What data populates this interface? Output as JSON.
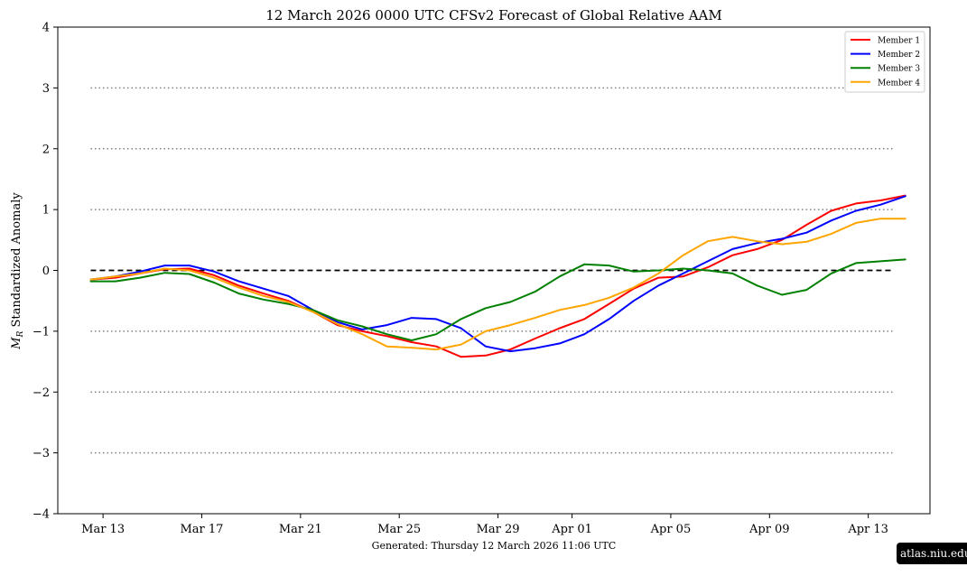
{
  "chart_data": {
    "type": "line",
    "title": "12  March  2026 0000 UTC   CFSv2 Forecast of Global Relative AAM",
    "ylabel_prefix": "M",
    "ylabel_subscript": "R",
    "ylabel_text": " Standardized Anomaly",
    "ylim": [
      -4,
      4
    ],
    "yticks": [
      {
        "value": 4,
        "label": "4"
      },
      {
        "value": 3,
        "label": "3"
      },
      {
        "value": 2,
        "label": "2"
      },
      {
        "value": 1,
        "label": "1"
      },
      {
        "value": 0,
        "label": "0"
      },
      {
        "value": -1,
        "label": "−1"
      },
      {
        "value": -2,
        "label": "−2"
      },
      {
        "value": -3,
        "label": "−3"
      },
      {
        "value": -4,
        "label": "−4"
      }
    ],
    "xlim": [
      "2026-03-11T04:00",
      "2026-04-15T12:00"
    ],
    "xticks": [
      {
        "value": "2026-03-13",
        "label": "Mar 13"
      },
      {
        "value": "2026-03-17",
        "label": "Mar 17"
      },
      {
        "value": "2026-03-21",
        "label": "Mar 21"
      },
      {
        "value": "2026-03-25",
        "label": "Mar 25"
      },
      {
        "value": "2026-03-29",
        "label": "Mar 29"
      },
      {
        "value": "2026-04-01",
        "label": "Apr 01"
      },
      {
        "value": "2026-04-05",
        "label": "Apr 05"
      },
      {
        "value": "2026-04-09",
        "label": "Apr 09"
      },
      {
        "value": "2026-04-13",
        "label": "Apr 13"
      }
    ],
    "reference_lines": [
      {
        "y": 3,
        "style": "dotted",
        "color": "#808080"
      },
      {
        "y": 2,
        "style": "dotted",
        "color": "#808080"
      },
      {
        "y": 1,
        "style": "dotted",
        "color": "#808080"
      },
      {
        "y": 0,
        "style": "dashed",
        "color": "#000000"
      },
      {
        "y": -1,
        "style": "dotted",
        "color": "#808080"
      },
      {
        "y": -2,
        "style": "dotted",
        "color": "#808080"
      },
      {
        "y": -3,
        "style": "dotted",
        "color": "#808080"
      }
    ],
    "reference_x_range": [
      "2026-03-12T12:00",
      "2026-04-14T00:00"
    ],
    "legend_position": "top-right",
    "series": [
      {
        "name": "Member 1",
        "color": "#ff0000",
        "points": [
          [
            "2026-03-12T12:00",
            -0.15
          ],
          [
            "2026-03-13T12:00",
            -0.12
          ],
          [
            "2026-03-14T12:00",
            -0.05
          ],
          [
            "2026-03-15T12:00",
            0.02
          ],
          [
            "2026-03-16T12:00",
            0.03
          ],
          [
            "2026-03-17T12:00",
            -0.08
          ],
          [
            "2026-03-18T12:00",
            -0.25
          ],
          [
            "2026-03-19T12:00",
            -0.38
          ],
          [
            "2026-03-20T12:00",
            -0.5
          ],
          [
            "2026-03-21T12:00",
            -0.68
          ],
          [
            "2026-03-22T12:00",
            -0.9
          ],
          [
            "2026-03-23T12:00",
            -1.0
          ],
          [
            "2026-03-24T12:00",
            -1.08
          ],
          [
            "2026-03-25T12:00",
            -1.18
          ],
          [
            "2026-03-26T12:00",
            -1.25
          ],
          [
            "2026-03-27T12:00",
            -1.42
          ],
          [
            "2026-03-28T12:00",
            -1.4
          ],
          [
            "2026-03-29T12:00",
            -1.3
          ],
          [
            "2026-03-30T12:00",
            -1.12
          ],
          [
            "2026-03-31T12:00",
            -0.95
          ],
          [
            "2026-04-01T12:00",
            -0.8
          ],
          [
            "2026-04-02T12:00",
            -0.55
          ],
          [
            "2026-04-03T12:00",
            -0.3
          ],
          [
            "2026-04-04T12:00",
            -0.12
          ],
          [
            "2026-04-05T12:00",
            -0.1
          ],
          [
            "2026-04-06T12:00",
            0.05
          ],
          [
            "2026-04-07T12:00",
            0.25
          ],
          [
            "2026-04-08T12:00",
            0.35
          ],
          [
            "2026-04-09T12:00",
            0.5
          ],
          [
            "2026-04-10T12:00",
            0.75
          ],
          [
            "2026-04-11T12:00",
            0.98
          ],
          [
            "2026-04-12T12:00",
            1.1
          ],
          [
            "2026-04-13T12:00",
            1.15
          ],
          [
            "2026-04-14T12:00",
            1.23
          ]
        ]
      },
      {
        "name": "Member 2",
        "color": "#0000ff",
        "points": [
          [
            "2026-03-12T12:00",
            -0.15
          ],
          [
            "2026-03-13T12:00",
            -0.1
          ],
          [
            "2026-03-14T12:00",
            -0.02
          ],
          [
            "2026-03-15T12:00",
            0.08
          ],
          [
            "2026-03-16T12:00",
            0.08
          ],
          [
            "2026-03-17T12:00",
            -0.02
          ],
          [
            "2026-03-18T12:00",
            -0.18
          ],
          [
            "2026-03-19T12:00",
            -0.3
          ],
          [
            "2026-03-20T12:00",
            -0.42
          ],
          [
            "2026-03-21T12:00",
            -0.65
          ],
          [
            "2026-03-22T12:00",
            -0.85
          ],
          [
            "2026-03-23T12:00",
            -0.97
          ],
          [
            "2026-03-24T12:00",
            -0.9
          ],
          [
            "2026-03-25T12:00",
            -0.78
          ],
          [
            "2026-03-26T12:00",
            -0.8
          ],
          [
            "2026-03-27T12:00",
            -0.95
          ],
          [
            "2026-03-28T12:00",
            -1.25
          ],
          [
            "2026-03-29T12:00",
            -1.33
          ],
          [
            "2026-03-30T12:00",
            -1.28
          ],
          [
            "2026-03-31T12:00",
            -1.2
          ],
          [
            "2026-04-01T12:00",
            -1.05
          ],
          [
            "2026-04-02T12:00",
            -0.8
          ],
          [
            "2026-04-03T12:00",
            -0.5
          ],
          [
            "2026-04-04T12:00",
            -0.25
          ],
          [
            "2026-04-05T12:00",
            -0.05
          ],
          [
            "2026-04-06T12:00",
            0.15
          ],
          [
            "2026-04-07T12:00",
            0.35
          ],
          [
            "2026-04-08T12:00",
            0.45
          ],
          [
            "2026-04-09T12:00",
            0.52
          ],
          [
            "2026-04-10T12:00",
            0.62
          ],
          [
            "2026-04-11T12:00",
            0.82
          ],
          [
            "2026-04-12T12:00",
            0.98
          ],
          [
            "2026-04-13T12:00",
            1.08
          ],
          [
            "2026-04-14T12:00",
            1.22
          ]
        ]
      },
      {
        "name": "Member 3",
        "color": "#008000",
        "points": [
          [
            "2026-03-12T12:00",
            -0.18
          ],
          [
            "2026-03-13T12:00",
            -0.18
          ],
          [
            "2026-03-14T12:00",
            -0.12
          ],
          [
            "2026-03-15T12:00",
            -0.04
          ],
          [
            "2026-03-16T12:00",
            -0.06
          ],
          [
            "2026-03-17T12:00",
            -0.2
          ],
          [
            "2026-03-18T12:00",
            -0.38
          ],
          [
            "2026-03-19T12:00",
            -0.48
          ],
          [
            "2026-03-20T12:00",
            -0.55
          ],
          [
            "2026-03-21T12:00",
            -0.65
          ],
          [
            "2026-03-22T12:00",
            -0.82
          ],
          [
            "2026-03-23T12:00",
            -0.92
          ],
          [
            "2026-03-24T12:00",
            -1.05
          ],
          [
            "2026-03-25T12:00",
            -1.15
          ],
          [
            "2026-03-26T12:00",
            -1.05
          ],
          [
            "2026-03-27T12:00",
            -0.8
          ],
          [
            "2026-03-28T12:00",
            -0.62
          ],
          [
            "2026-03-29T12:00",
            -0.52
          ],
          [
            "2026-03-30T12:00",
            -0.35
          ],
          [
            "2026-03-31T12:00",
            -0.1
          ],
          [
            "2026-04-01T12:00",
            0.1
          ],
          [
            "2026-04-02T12:00",
            0.08
          ],
          [
            "2026-04-03T12:00",
            -0.02
          ],
          [
            "2026-04-04T12:00",
            0.0
          ],
          [
            "2026-04-05T12:00",
            0.03
          ],
          [
            "2026-04-06T12:00",
            0.0
          ],
          [
            "2026-04-07T12:00",
            -0.05
          ],
          [
            "2026-04-08T12:00",
            -0.25
          ],
          [
            "2026-04-09T12:00",
            -0.4
          ],
          [
            "2026-04-10T12:00",
            -0.32
          ],
          [
            "2026-04-11T12:00",
            -0.05
          ],
          [
            "2026-04-12T12:00",
            0.12
          ],
          [
            "2026-04-13T12:00",
            0.15
          ],
          [
            "2026-04-14T12:00",
            0.18
          ]
        ]
      },
      {
        "name": "Member 4",
        "color": "#ffa500",
        "points": [
          [
            "2026-03-12T12:00",
            -0.15
          ],
          [
            "2026-03-13T12:00",
            -0.1
          ],
          [
            "2026-03-14T12:00",
            -0.05
          ],
          [
            "2026-03-15T12:00",
            0.03
          ],
          [
            "2026-03-16T12:00",
            0.0
          ],
          [
            "2026-03-17T12:00",
            -0.12
          ],
          [
            "2026-03-18T12:00",
            -0.28
          ],
          [
            "2026-03-19T12:00",
            -0.42
          ],
          [
            "2026-03-20T12:00",
            -0.52
          ],
          [
            "2026-03-21T12:00",
            -0.68
          ],
          [
            "2026-03-22T12:00",
            -0.88
          ],
          [
            "2026-03-23T12:00",
            -1.05
          ],
          [
            "2026-03-24T12:00",
            -1.25
          ],
          [
            "2026-03-25T12:00",
            -1.27
          ],
          [
            "2026-03-26T12:00",
            -1.3
          ],
          [
            "2026-03-27T12:00",
            -1.22
          ],
          [
            "2026-03-28T12:00",
            -1.0
          ],
          [
            "2026-03-29T12:00",
            -0.9
          ],
          [
            "2026-03-30T12:00",
            -0.78
          ],
          [
            "2026-03-31T12:00",
            -0.65
          ],
          [
            "2026-04-01T12:00",
            -0.57
          ],
          [
            "2026-04-02T12:00",
            -0.45
          ],
          [
            "2026-04-03T12:00",
            -0.28
          ],
          [
            "2026-04-04T12:00",
            -0.05
          ],
          [
            "2026-04-05T12:00",
            0.25
          ],
          [
            "2026-04-06T12:00",
            0.48
          ],
          [
            "2026-04-07T12:00",
            0.55
          ],
          [
            "2026-04-08T12:00",
            0.48
          ],
          [
            "2026-04-09T12:00",
            0.43
          ],
          [
            "2026-04-10T12:00",
            0.47
          ],
          [
            "2026-04-11T12:00",
            0.6
          ],
          [
            "2026-04-12T12:00",
            0.78
          ],
          [
            "2026-04-13T12:00",
            0.85
          ],
          [
            "2026-04-14T12:00",
            0.85
          ]
        ]
      }
    ]
  },
  "footer": {
    "generated": "Generated: Thursday  12  March  2026  11:06 UTC"
  },
  "credit": "atlas.niu.edu"
}
